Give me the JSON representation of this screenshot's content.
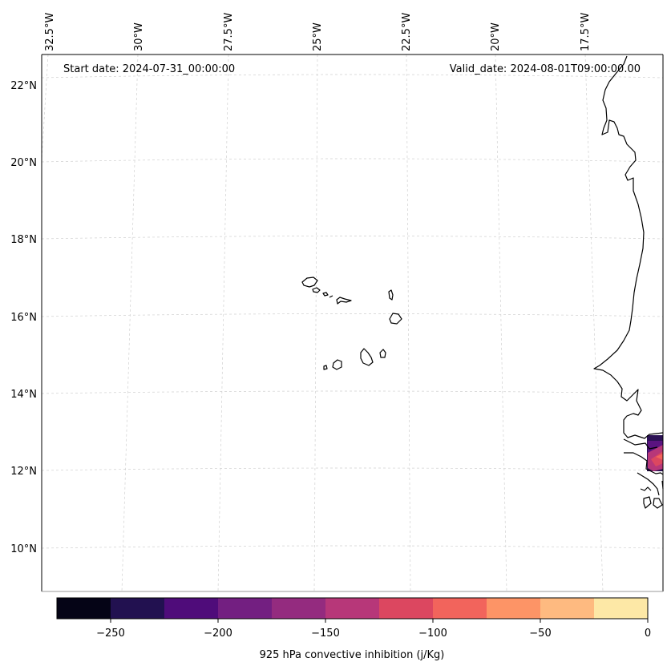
{
  "map": {
    "start_date": "Start date: 2024-07-31_00:00:00",
    "valid_date": "Valid_date: 2024-08-01T09:00:00.00",
    "lon_labels": [
      "32.5°W",
      "30°W",
      "27.5°W",
      "25°W",
      "22.5°W",
      "20°W",
      "17.5°W"
    ],
    "lat_labels": [
      "22°N",
      "20°N",
      "18°N",
      "16°N",
      "14°N",
      "12°N",
      "10°N"
    ]
  },
  "colorbar": {
    "label": "925 hPa convective inhibition (j/Kg)",
    "ticks": [
      "−250",
      "−200",
      "−150",
      "−100",
      "−50",
      "0"
    ],
    "colors": [
      "#050416",
      "#221150",
      "#4f0c7a",
      "#731f81",
      "#942b7f",
      "#b73779",
      "#dc4760",
      "#f2645c",
      "#fd9466",
      "#feba80",
      "#fde8a6"
    ]
  },
  "chart_data": {
    "type": "heatmap",
    "variable": "925 hPa convective inhibition (j/Kg)",
    "color_range": [
      -275,
      0
    ],
    "color_levels": [
      -275,
      -250,
      -225,
      -200,
      -175,
      -150,
      -125,
      -100,
      -75,
      -50,
      -25,
      0
    ],
    "lon_range": [
      -33,
      -16
    ],
    "lat_range": [
      9,
      22.5
    ],
    "grid": true
  }
}
